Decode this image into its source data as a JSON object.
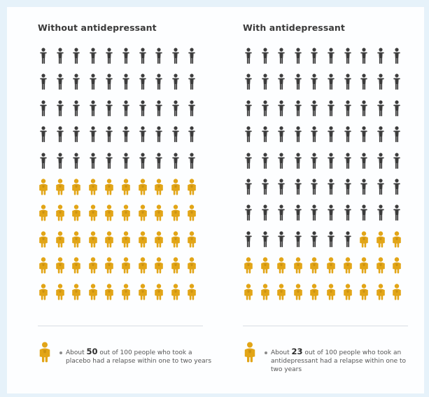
{
  "left": {
    "title": "Without antidepressant",
    "total": 100,
    "highlighted": 50,
    "legend": {
      "before": "About ",
      "number": "50",
      "after": " out of 100 people who took a placebo had a relapse within one to two years"
    }
  },
  "right": {
    "title": "With antidepressant",
    "total": 100,
    "highlighted": 23,
    "legend": {
      "before": "About ",
      "number": "23",
      "after": " out of 100 people who took an antidepressant had a relapse within one to two years"
    }
  },
  "icons": {
    "person_default": "person-icon",
    "person_relapse": "person-relapse-icon"
  },
  "colors": {
    "default": "#3c3c3c",
    "relapse": "#e2a517",
    "relapse_dark": "#b9830c",
    "background": "#e6f2fa",
    "card": "#fdfeff"
  }
}
